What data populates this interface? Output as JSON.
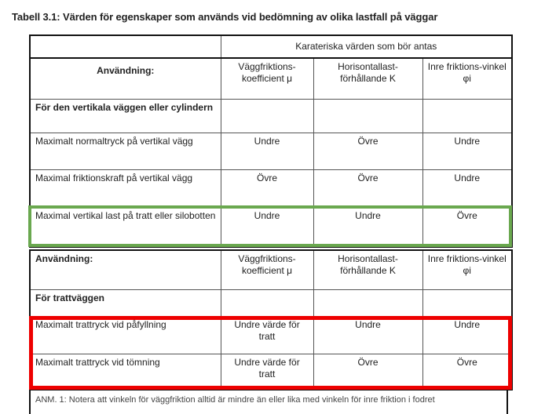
{
  "caption": "Tabell 3.1: Värden för egenskaper som används vid bedömning av olika lastfall på väggar",
  "table": {
    "group_header": "Karateriska värden som bör antas",
    "columns": {
      "usage": "Användning:",
      "wall_friction": "Väggfriktions-koefficient μ",
      "lateral_ratio": "Horisontallast-förhållande K",
      "internal_friction": "Inre friktions-vinkel φi"
    },
    "section1": {
      "title": "För den vertikala väggen eller cylindern",
      "rows": [
        {
          "label": "Maximalt normaltryck på vertikal vägg",
          "mu": "Undre",
          "k": "Övre",
          "phi": "Undre"
        },
        {
          "label": "Maximal friktionskraft på vertikal vägg",
          "mu": "Övre",
          "k": "Övre",
          "phi": "Undre"
        },
        {
          "label": "Maximal vertikal last på tratt eller silobotten",
          "mu": "Undre",
          "k": "Undre",
          "phi": "Övre"
        }
      ]
    },
    "section2": {
      "title": "För trattväggen",
      "rows": [
        {
          "label": "Maximalt trattryck vid påfyllning",
          "mu": "Undre värde för tratt",
          "k": "Undre",
          "phi": "Undre"
        },
        {
          "label": "Maximalt trattryck vid tömning",
          "mu": "Undre värde för tratt",
          "k": "Övre",
          "phi": "Övre"
        }
      ]
    },
    "note": "ANM. 1: Notera att vinkeln för väggfriktion alltid är mindre än eller lika med vinkeln för inre friktion i fodret"
  },
  "highlight_colors": {
    "green": "#6aa84f",
    "red": "#ee0000"
  }
}
